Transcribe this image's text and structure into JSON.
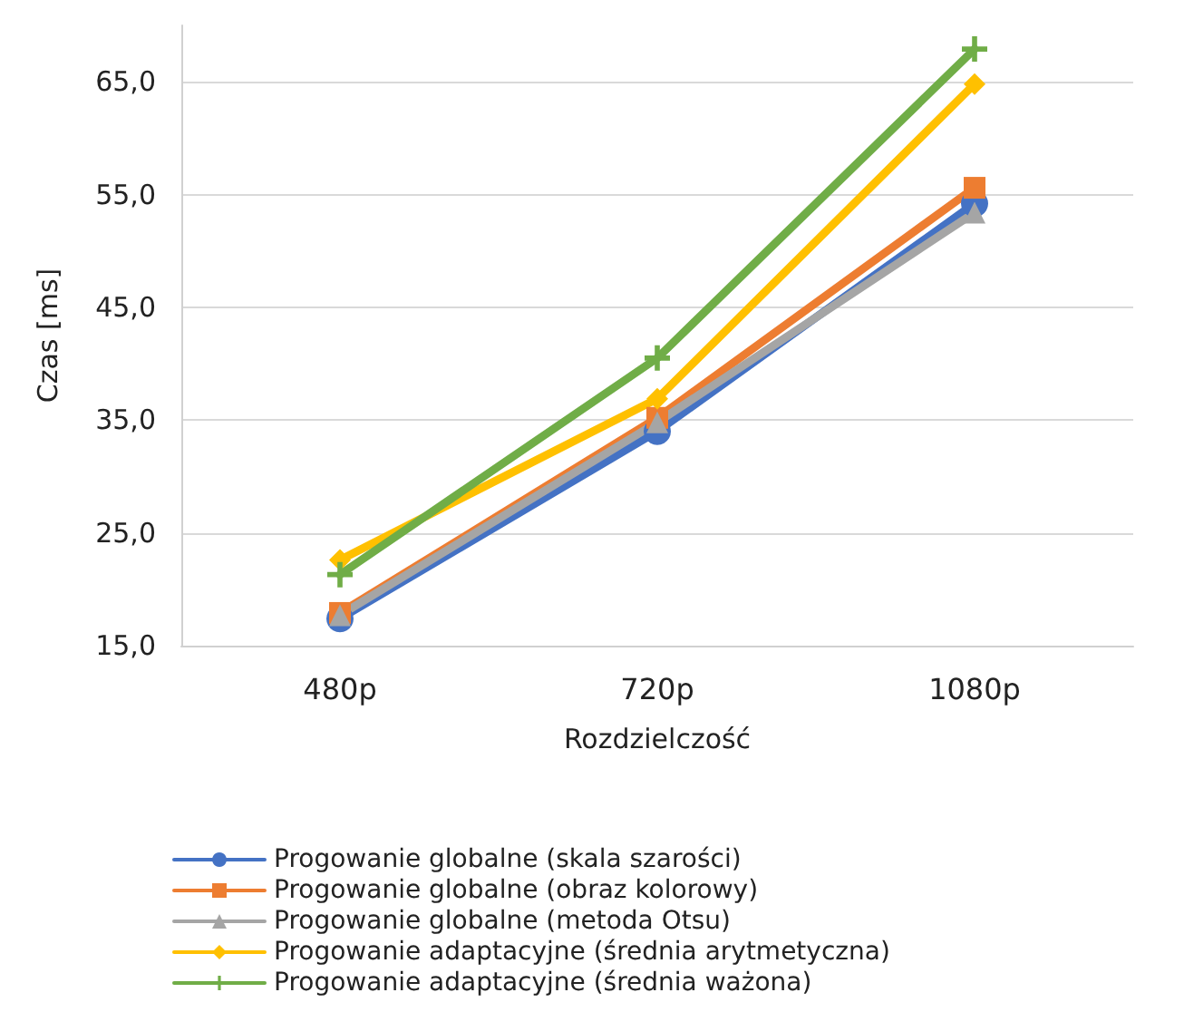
{
  "chart_data": {
    "type": "line",
    "xlabel": "Rozdzielczość",
    "ylabel": "Czas [ms]",
    "categories": [
      "480p",
      "720p",
      "1080p"
    ],
    "ylim": [
      15,
      70
    ],
    "yticks": [
      {
        "value": 15,
        "label": "15,0"
      },
      {
        "value": 25,
        "label": "25,0"
      },
      {
        "value": 35,
        "label": "35,0"
      },
      {
        "value": 45,
        "label": "45,0"
      },
      {
        "value": 55,
        "label": "55,0"
      },
      {
        "value": 65,
        "label": "65,0"
      }
    ],
    "grid": "y",
    "legend": "bottom",
    "series": [
      {
        "name": "Progowanie globalne (skala szarości)",
        "color": "#4472c4",
        "marker": "circle",
        "values": [
          17.4,
          34.0,
          54.2
        ]
      },
      {
        "name": "Progowanie globalne (obraz kolorowy)",
        "color": "#ed7d31",
        "marker": "square",
        "values": [
          17.9,
          35.2,
          55.6
        ]
      },
      {
        "name": "Progowanie globalne (metoda Otsu)",
        "color": "#a5a5a5",
        "marker": "triangle",
        "values": [
          17.7,
          34.8,
          53.4
        ]
      },
      {
        "name": "Progowanie adaptacyjne (średnia arytmetyczna)",
        "color": "#ffc000",
        "marker": "diamond",
        "values": [
          22.6,
          36.9,
          64.8
        ]
      },
      {
        "name": "Progowanie adaptacyjne (średnia ważona)",
        "color": "#70ad47",
        "marker": "cross",
        "values": [
          21.3,
          40.5,
          67.9
        ]
      }
    ]
  }
}
